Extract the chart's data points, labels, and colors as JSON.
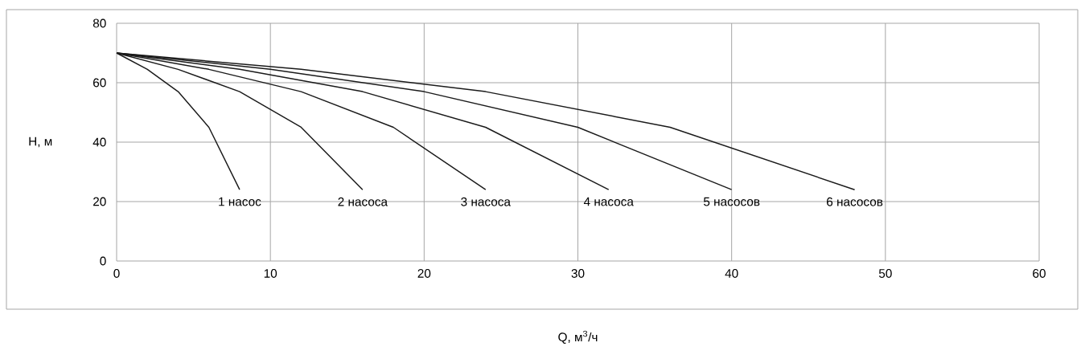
{
  "chart_data": {
    "type": "line",
    "xlabel": "Q, м$^{3}$/ч",
    "ylabel": "H, м",
    "xlim": [
      0,
      60
    ],
    "ylim": [
      0,
      80
    ],
    "xticks": [
      0,
      10,
      20,
      30,
      40,
      50,
      60
    ],
    "yticks": [
      0,
      20,
      40,
      60,
      80
    ],
    "grid": true,
    "series": [
      {
        "name": "1 насос",
        "color": "#1a1a1a",
        "x": [
          0,
          2,
          4,
          6,
          8
        ],
        "values": [
          70,
          64.5,
          57,
          45,
          24
        ]
      },
      {
        "name": "2 насоса",
        "color": "#1a1a1a",
        "x": [
          0,
          4,
          8,
          12,
          16
        ],
        "values": [
          70,
          64.5,
          57,
          45,
          24
        ]
      },
      {
        "name": "3 насоса",
        "color": "#1a1a1a",
        "x": [
          0,
          6,
          12,
          18,
          24
        ],
        "values": [
          70,
          64.5,
          57,
          45,
          24
        ]
      },
      {
        "name": "4 насоса",
        "color": "#1a1a1a",
        "x": [
          0,
          8,
          16,
          24,
          32
        ],
        "values": [
          70,
          64.5,
          57,
          45,
          24
        ]
      },
      {
        "name": "5 насосов",
        "color": "#1a1a1a",
        "x": [
          0,
          10,
          20,
          30,
          40
        ],
        "values": [
          70,
          64.5,
          57,
          45,
          24
        ]
      },
      {
        "name": "6 насосов",
        "color": "#1a1a1a",
        "x": [
          0,
          12,
          24,
          36,
          48
        ],
        "values": [
          70,
          64.5,
          57,
          45,
          24
        ]
      }
    ]
  }
}
